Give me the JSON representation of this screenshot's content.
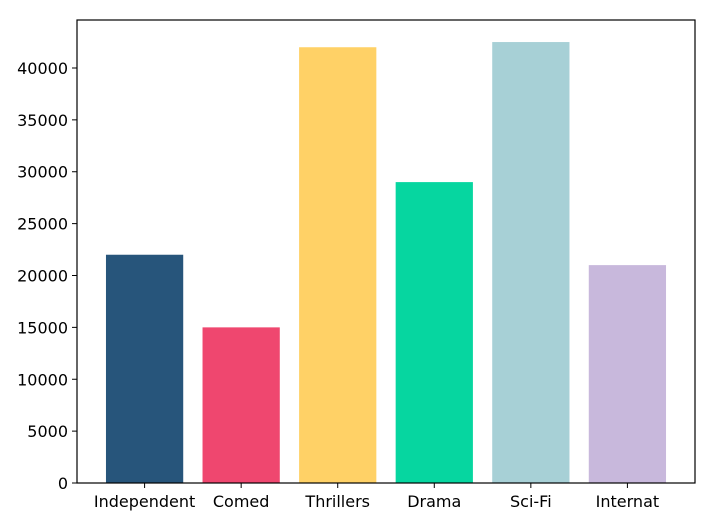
{
  "chart_data": {
    "type": "bar",
    "title": "",
    "xlabel": "",
    "ylabel": "",
    "categories": [
      "Independent",
      "Comed",
      "Thrillers",
      "Drama",
      "Sci-Fi",
      "Internat"
    ],
    "values": [
      22000,
      15000,
      42000,
      29000,
      42500,
      21000
    ],
    "colors": [
      "#27557b",
      "#ef476f",
      "#ffd166",
      "#06d6a0",
      "#a7d0d6",
      "#c8b8dc"
    ],
    "ylim": [
      0,
      44625
    ],
    "yticks": [
      0,
      5000,
      10000,
      15000,
      20000,
      25000,
      30000,
      35000,
      40000
    ],
    "grid": false
  }
}
